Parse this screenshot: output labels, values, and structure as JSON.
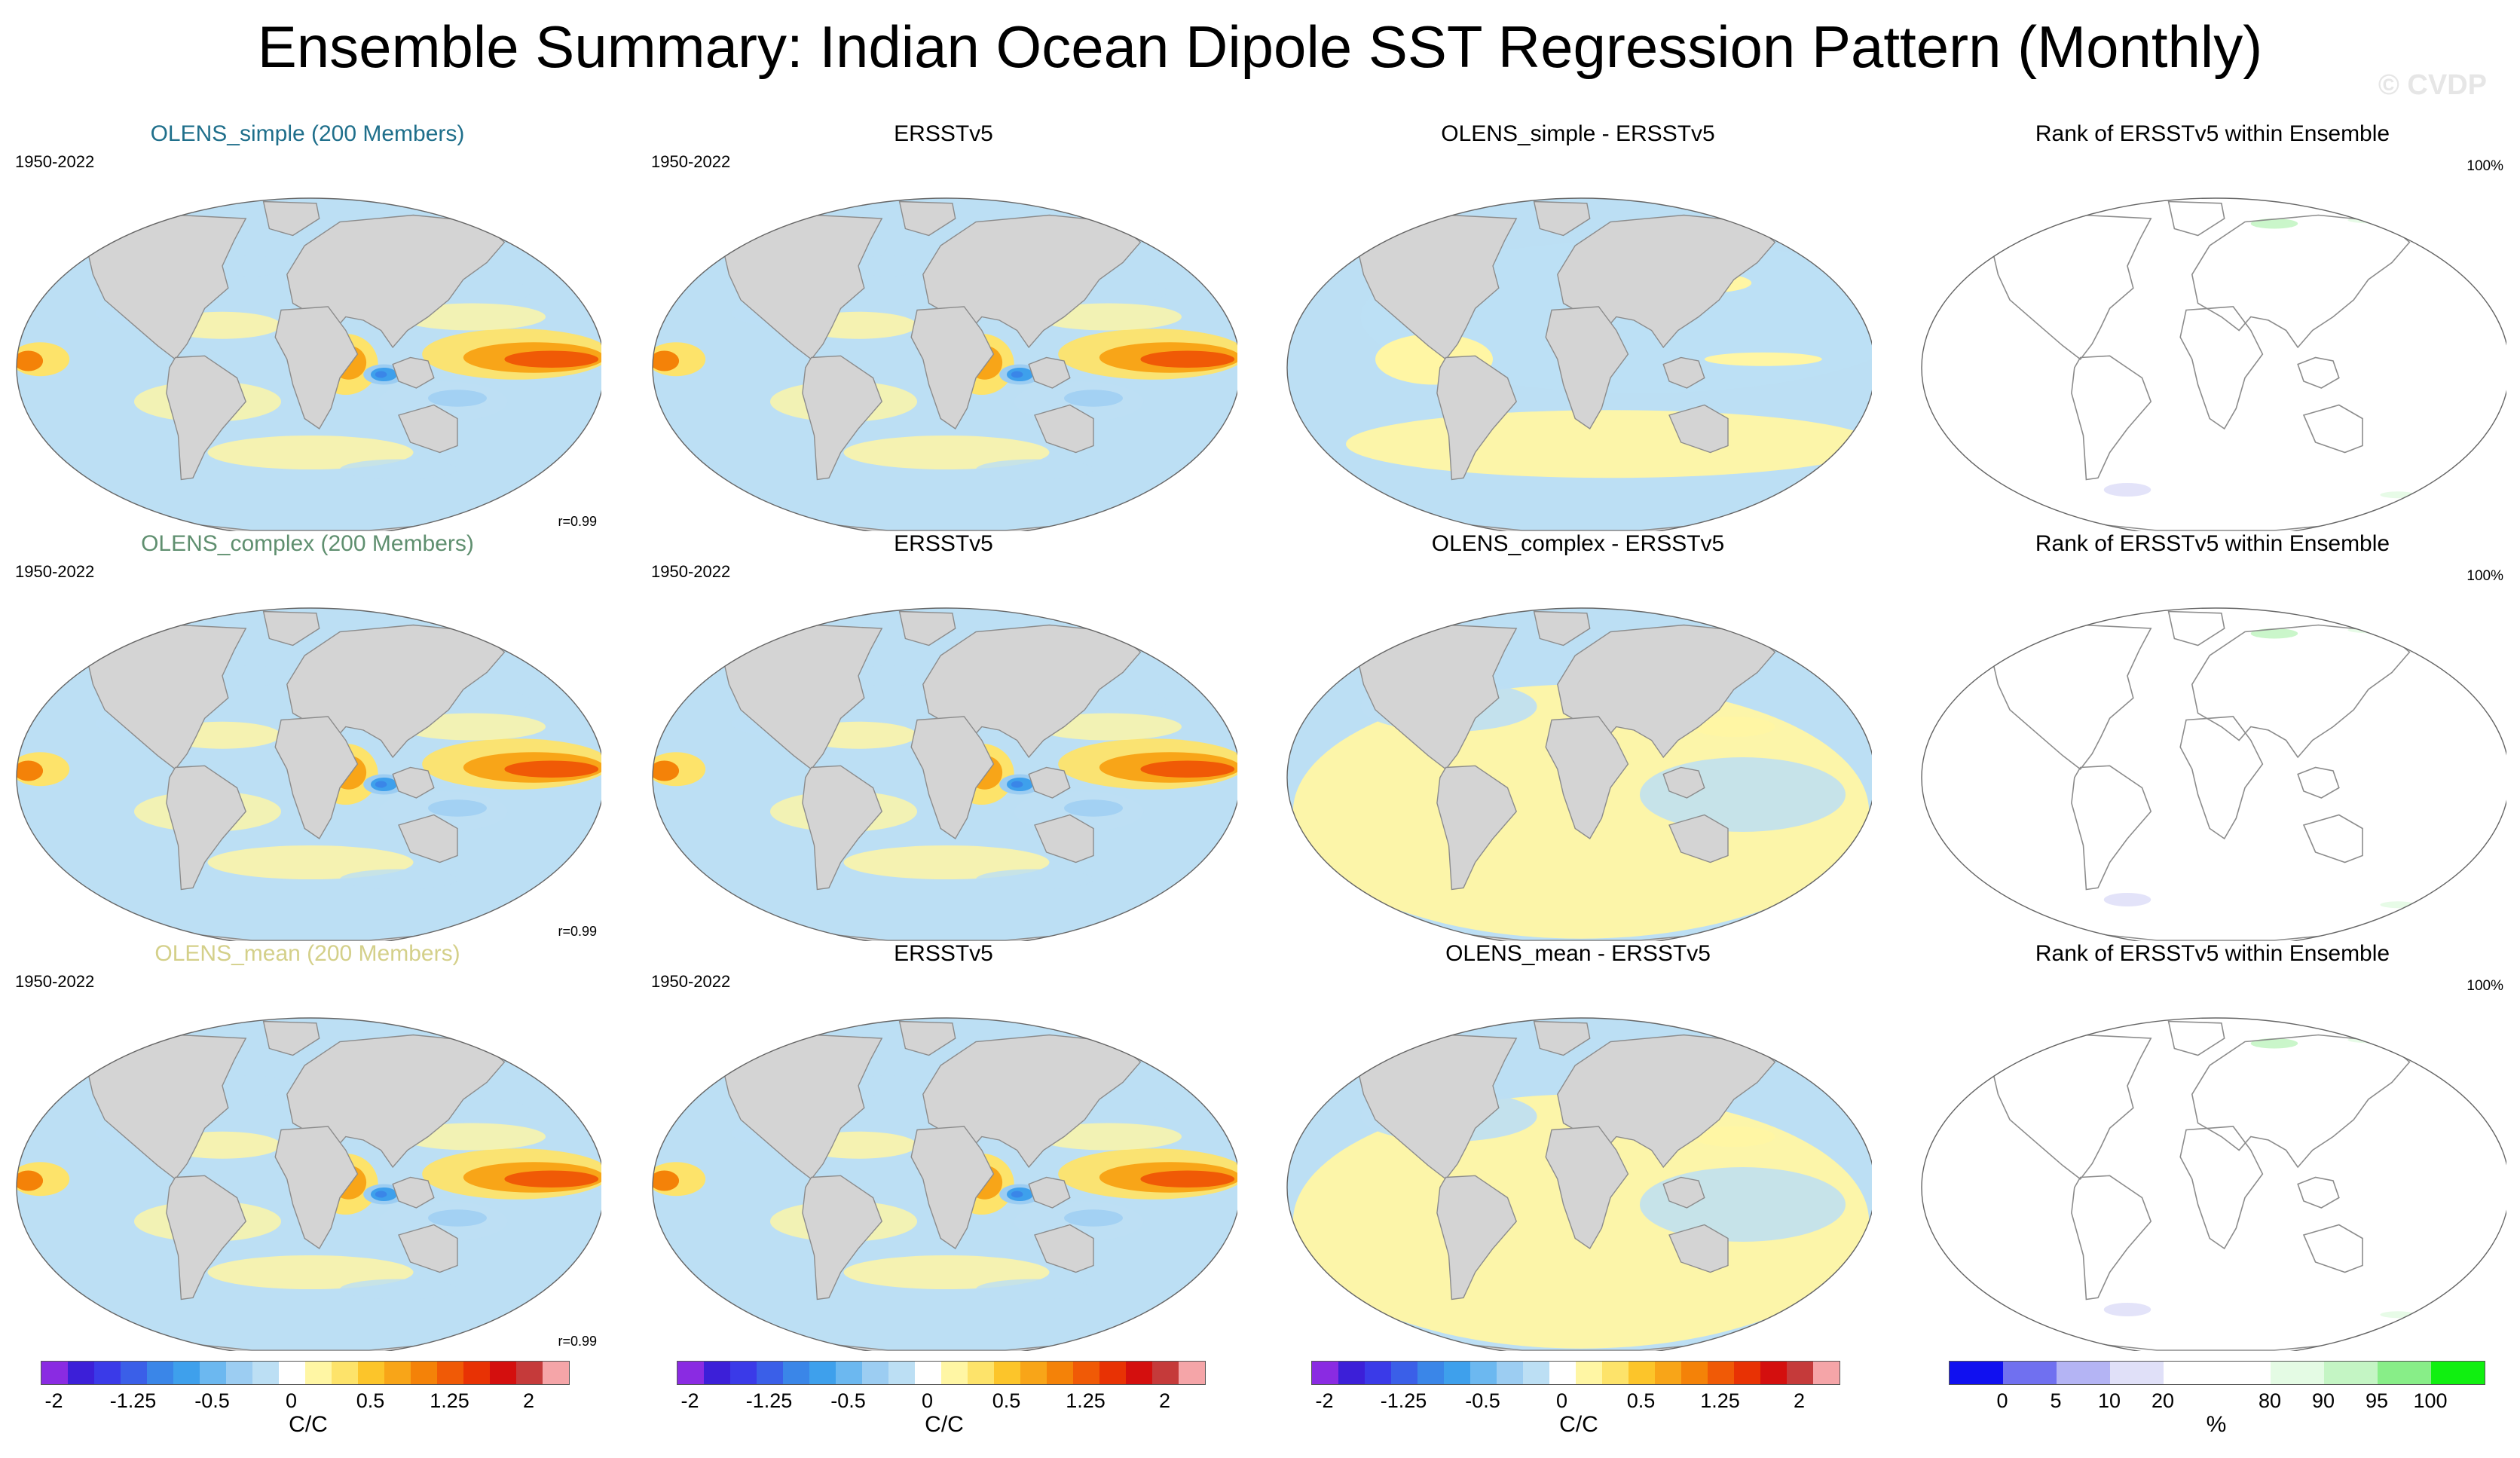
{
  "title": "Ensemble Summary: Indian Ocean Dipole SST Regression Pattern (Monthly)",
  "watermark": "© CVDP",
  "colors": {
    "land": "#d4d4d4",
    "coast": "#8c8c8c",
    "ocean_neutral": "#ffffff",
    "title_simple": "#1f6f8b",
    "title_complex": "#5f8f6f",
    "title_mean": "#d4d08a",
    "title_default": "#000000"
  },
  "colorbars": {
    "reg": {
      "boxes": [
        "#8a2be2",
        "#3c1fd8",
        "#3a3ae8",
        "#3a5fe8",
        "#3a86e8",
        "#3ea0ec",
        "#6cb8f0",
        "#9ccdf2",
        "#bcdff4",
        "#ffffff",
        "#fff6a4",
        "#fde36a",
        "#fcc52a",
        "#f8a518",
        "#f48208",
        "#f05a06",
        "#e83204",
        "#d40f0e",
        "#c53a3a",
        "#f5a5a8"
      ],
      "ticks": [
        "-2",
        "-1.25",
        "-0.5",
        "0",
        "0.5",
        "1.25",
        "2"
      ],
      "unit": "C/C"
    },
    "rank": {
      "boxes": [
        "#1010f0",
        "#7070f0",
        "#b4b4f4",
        "#e0e0f8",
        "#ffffff",
        "#ffffff",
        "#e4fbe4",
        "#c4f5c4",
        "#88ee88",
        "#10f010"
      ],
      "ticks": [
        "0",
        "5",
        "10",
        "20",
        "80",
        "90",
        "95",
        "100"
      ],
      "unit": "%"
    }
  },
  "chart_data": [
    {
      "type": "heatmap",
      "id": "p00",
      "title": "OLENS_simple (200 Members)",
      "title_color_key": "title_simple",
      "period": "1950-2022",
      "corr": "r=0.99",
      "variant": "reg"
    },
    {
      "type": "heatmap",
      "id": "p01",
      "title": "ERSSTv5",
      "title_color_key": "title_default",
      "period": "1950-2022",
      "variant": "reg"
    },
    {
      "type": "heatmap",
      "id": "p02",
      "title": "OLENS_simple - ERSSTv5",
      "title_color_key": "title_default",
      "variant": "diff1"
    },
    {
      "type": "heatmap",
      "id": "p03",
      "title": "Rank of ERSSTv5 within Ensemble",
      "title_color_key": "title_default",
      "pct": "100%",
      "variant": "rank"
    },
    {
      "type": "heatmap",
      "id": "p10",
      "title": "OLENS_complex (200 Members)",
      "title_color_key": "title_complex",
      "period": "1950-2022",
      "corr": "r=0.99",
      "variant": "reg"
    },
    {
      "type": "heatmap",
      "id": "p11",
      "title": "ERSSTv5",
      "title_color_key": "title_default",
      "period": "1950-2022",
      "variant": "reg"
    },
    {
      "type": "heatmap",
      "id": "p12",
      "title": "OLENS_complex - ERSSTv5",
      "title_color_key": "title_default",
      "variant": "diff2"
    },
    {
      "type": "heatmap",
      "id": "p13",
      "title": "Rank of ERSSTv5 within Ensemble",
      "title_color_key": "title_default",
      "pct": "100%",
      "variant": "rank"
    },
    {
      "type": "heatmap",
      "id": "p20",
      "title": "OLENS_mean (200 Members)",
      "title_color_key": "title_mean",
      "period": "1950-2022",
      "corr": "r=0.99",
      "variant": "reg"
    },
    {
      "type": "heatmap",
      "id": "p21",
      "title": "ERSSTv5",
      "title_color_key": "title_default",
      "period": "1950-2022",
      "variant": "reg"
    },
    {
      "type": "heatmap",
      "id": "p22",
      "title": "OLENS_mean - ERSSTv5",
      "title_color_key": "title_default",
      "variant": "diff2"
    },
    {
      "type": "heatmap",
      "id": "p23",
      "title": "Rank of ERSSTv5 within Ensemble",
      "title_color_key": "title_default",
      "pct": "100%",
      "variant": "rank"
    }
  ]
}
